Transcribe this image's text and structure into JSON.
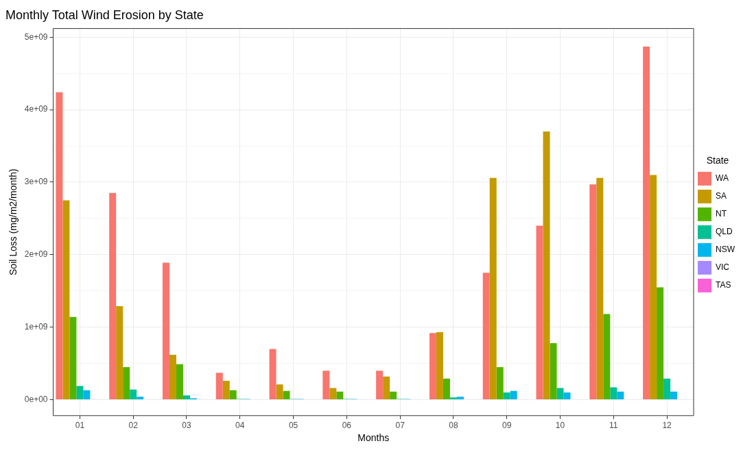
{
  "chart_data": {
    "type": "bar",
    "title": "Monthly Total Wind Erosion by State",
    "xlabel": "Months",
    "ylabel": "Soil Loss (mg/m2/month)",
    "legend_title": "State",
    "legend": "right",
    "grid": true,
    "categories": [
      "01",
      "02",
      "03",
      "04",
      "05",
      "06",
      "07",
      "08",
      "09",
      "10",
      "11",
      "12"
    ],
    "ylim": [
      -220000000,
      5120000000
    ],
    "yticks": [
      {
        "value": 0,
        "label": "0e+00"
      },
      {
        "value": 500000000,
        "label": null
      },
      {
        "value": 1000000000,
        "label": "1e+09"
      },
      {
        "value": 1500000000,
        "label": null
      },
      {
        "value": 2000000000,
        "label": "2e+09"
      },
      {
        "value": 2500000000,
        "label": null
      },
      {
        "value": 3000000000,
        "label": "3e+09"
      },
      {
        "value": 3500000000,
        "label": null
      },
      {
        "value": 4000000000,
        "label": "4e+09"
      },
      {
        "value": 4500000000,
        "label": null
      },
      {
        "value": 5000000000,
        "label": "5e+09"
      }
    ],
    "series": [
      {
        "name": "WA",
        "color": "#f8766d",
        "values": [
          4240000000,
          2850000000,
          1890000000,
          370000000,
          700000000,
          400000000,
          400000000,
          920000000,
          1750000000,
          2400000000,
          2970000000,
          4870000000
        ]
      },
      {
        "name": "SA",
        "color": "#c49a00",
        "values": [
          2750000000,
          1290000000,
          620000000,
          260000000,
          210000000,
          160000000,
          320000000,
          930000000,
          3060000000,
          3700000000,
          3060000000,
          3100000000
        ]
      },
      {
        "name": "NT",
        "color": "#53b400",
        "values": [
          1140000000,
          450000000,
          490000000,
          130000000,
          120000000,
          110000000,
          110000000,
          290000000,
          450000000,
          780000000,
          1180000000,
          1550000000
        ]
      },
      {
        "name": "QLD",
        "color": "#00c094",
        "values": [
          190000000,
          140000000,
          60000000,
          10000000,
          10000000,
          10000000,
          10000000,
          30000000,
          100000000,
          160000000,
          170000000,
          290000000
        ]
      },
      {
        "name": "NSW",
        "color": "#00b6eb",
        "values": [
          130000000,
          40000000,
          20000000,
          10000000,
          10000000,
          10000000,
          10000000,
          40000000,
          120000000,
          100000000,
          110000000,
          110000000
        ]
      },
      {
        "name": "VIC",
        "color": "#a58aff",
        "values": [
          0,
          0,
          0,
          0,
          0,
          0,
          0,
          0,
          0,
          0,
          0,
          0
        ]
      },
      {
        "name": "TAS",
        "color": "#fb61d7",
        "values": [
          0,
          0,
          0,
          0,
          0,
          0,
          0,
          0,
          0,
          0,
          0,
          0
        ]
      }
    ]
  }
}
